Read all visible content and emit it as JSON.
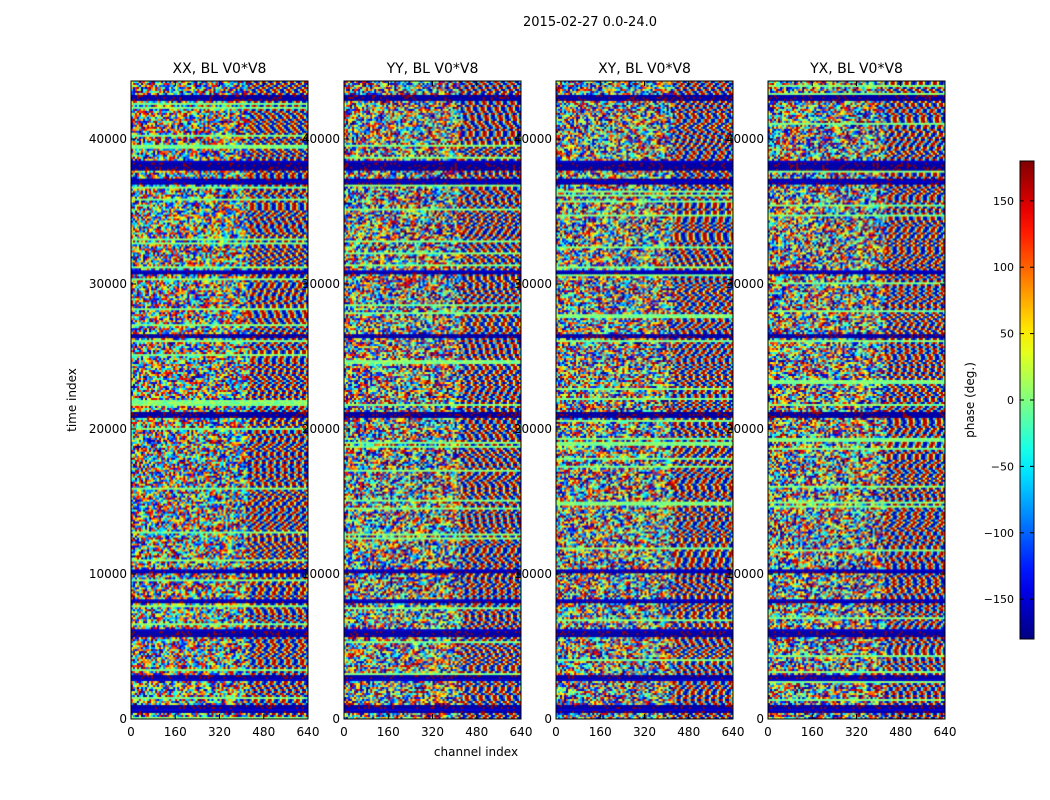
{
  "suptitle": "2015-02-27 0.0-24.0",
  "chart_data": {
    "type": "heatmap",
    "xlabel": "channel index",
    "ylabel": "time index",
    "xlim": [
      0,
      640
    ],
    "ylim": [
      0,
      44000
    ],
    "x_ticks": [
      0,
      160,
      320,
      480,
      640
    ],
    "y_ticks": [
      0,
      10000,
      20000,
      30000,
      40000
    ],
    "panels": [
      {
        "title": "XX, BL V0*V8",
        "seed": 11
      },
      {
        "title": "YY, BL V0*V8",
        "seed": 23
      },
      {
        "title": "XY, BL V0*V8",
        "seed": 37
      },
      {
        "title": "YX, BL V0*V8",
        "seed": 53
      }
    ],
    "colorbar": {
      "label": "phase (deg.)",
      "range": [
        -180,
        180
      ],
      "ticks": [
        -150,
        -100,
        -50,
        0,
        50,
        100,
        150
      ],
      "colormap": "jet"
    },
    "flagged_time_bands": [
      [
        400,
        900
      ],
      [
        2600,
        3000
      ],
      [
        5600,
        6200
      ],
      [
        8000,
        8200
      ],
      [
        10000,
        10300
      ],
      [
        20800,
        21200
      ],
      [
        26200,
        26500
      ],
      [
        30600,
        31000
      ],
      [
        36800,
        37200
      ],
      [
        37800,
        38500
      ],
      [
        42600,
        43000
      ]
    ]
  }
}
